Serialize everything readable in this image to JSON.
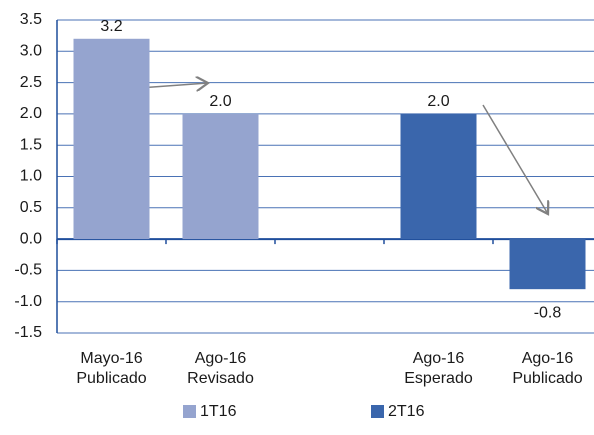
{
  "chart_data": {
    "type": "bar",
    "categories": [
      "Mayo-16\nPublicado",
      "Ago-16\nRevisado",
      null,
      "Ago-16\nEsperado",
      "Ago-16\nPublicado"
    ],
    "series": [
      {
        "name": "1T16",
        "color": "#95a4cf",
        "values": [
          3.2,
          2.0,
          null,
          null,
          null
        ],
        "value_labels": [
          "3.2",
          "2.0",
          null,
          null,
          null
        ]
      },
      {
        "name": "2T16",
        "color": "#3a66ac",
        "values": [
          null,
          null,
          null,
          2.0,
          -0.8
        ],
        "value_labels": [
          null,
          null,
          null,
          "2.0",
          "-0.8"
        ]
      }
    ],
    "ylim": [
      -1.5,
      3.5
    ],
    "yticks": [
      3.5,
      {
        "value": 3,
        "label": "3.0"
      },
      2.5,
      {
        "value": 2,
        "label": "2.0"
      },
      1.5,
      {
        "value": 1,
        "label": "1.0"
      },
      0.5,
      {
        "value": 0,
        "label": "0.0"
      },
      -0.5,
      {
        "value": -1,
        "label": "-1.0"
      },
      -1.5
    ],
    "grid": true
  }
}
